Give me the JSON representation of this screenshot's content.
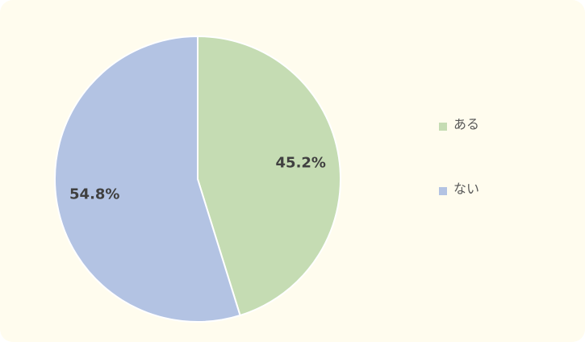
{
  "chart_data": {
    "type": "pie",
    "categories": [
      "ある",
      "ない"
    ],
    "values": [
      45.2,
      54.8
    ],
    "value_labels": [
      "45.2%",
      "54.8%"
    ],
    "colors": [
      "#c5dcb3",
      "#b3c3e3"
    ]
  }
}
